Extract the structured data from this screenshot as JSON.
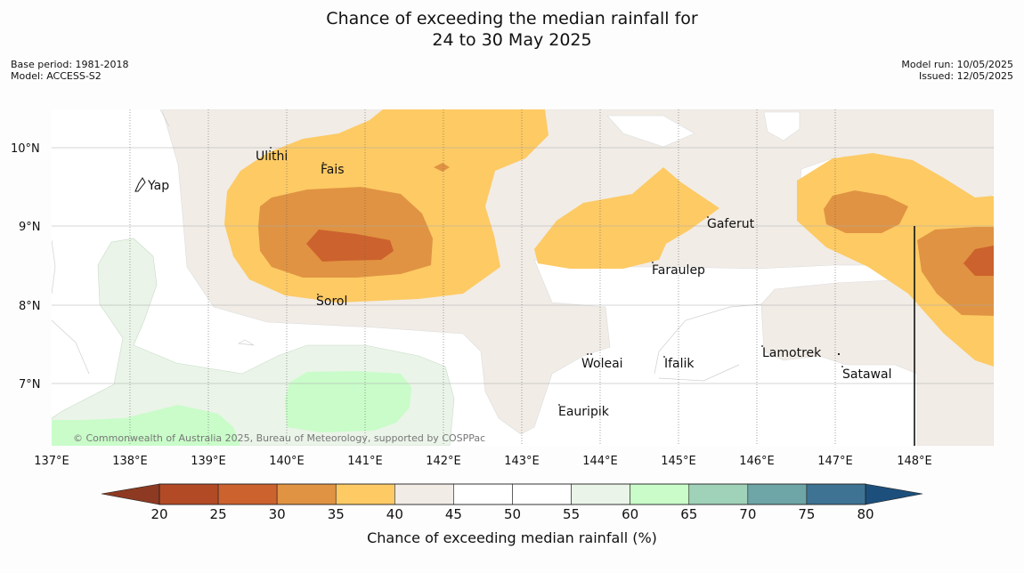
{
  "title_line1": "Chance of exceeding the median rainfall for",
  "title_line2": "24 to 30 May 2025",
  "meta_left": [
    "Base period: 1981-2018",
    "Model: ACCESS-S2"
  ],
  "meta_right": [
    "Model run: 10/05/2025",
    "Issued: 12/05/2025"
  ],
  "map": {
    "lon_range": [
      137,
      149
    ],
    "lat_range": [
      6.2,
      10.5
    ],
    "lon_ticks": [
      "137°E",
      "138°E",
      "139°E",
      "140°E",
      "141°E",
      "142°E",
      "143°E",
      "144°E",
      "145°E",
      "146°E",
      "147°E",
      "148°E"
    ],
    "lat_ticks": [
      "10°N",
      "9°N",
      "8°N",
      "7°N"
    ],
    "places": [
      "Yap",
      "Ulithi",
      "Fais",
      "Gaferut",
      "Faraulep",
      "Sorol",
      "Woleai",
      "Ifalik",
      "Lamotrek",
      "Satawal",
      "Eauripik"
    ],
    "credit": "© Commonwealth of Australia 2025, Bureau of Meteorology, supported by COSPPac"
  },
  "colorbar": {
    "title": "Chance of exceeding median rainfall (%)",
    "labels": [
      "20",
      "25",
      "30",
      "35",
      "40",
      "45",
      "50",
      "55",
      "60",
      "65",
      "70",
      "75",
      "80"
    ],
    "colors": [
      "#b34a26",
      "#cc622e",
      "#e09342",
      "#fdca64",
      "#f1ece6",
      "#ffffff",
      "#ffffff",
      "#eaf4e8",
      "#c9fcc9",
      "#9fd2b8",
      "#6ea5a6",
      "#3e7393"
    ],
    "under_color": "#8e3a22",
    "over_color": "#1c4f7c"
  }
}
